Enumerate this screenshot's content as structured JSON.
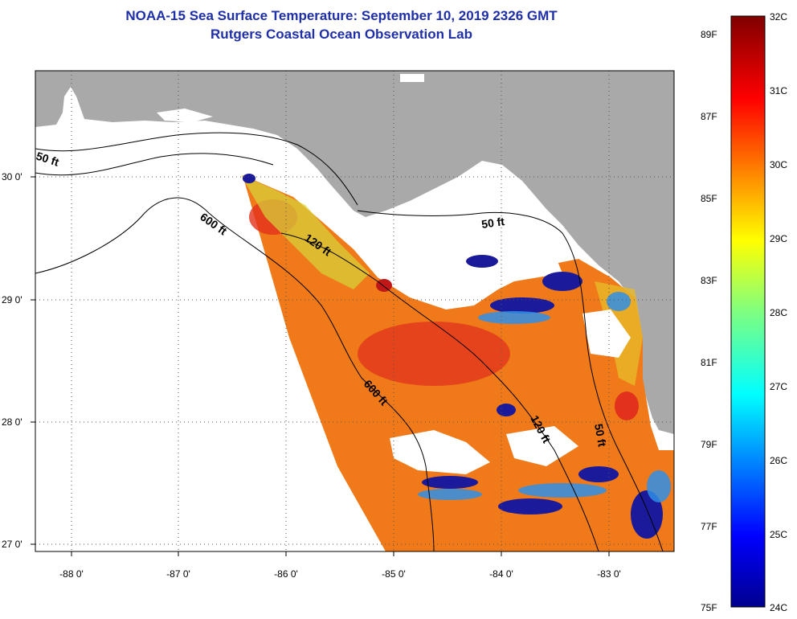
{
  "header": {
    "title": "NOAA-15 Sea Surface Temperature:  September 10, 2019 2326 GMT",
    "subtitle": "Rutgers Coastal Ocean Observation Lab"
  },
  "axes": {
    "lon_labels": [
      "-88 0'",
      "-87 0'",
      "-86 0'",
      "-85 0'",
      "-84 0'",
      "-83 0'"
    ],
    "lat_labels": [
      "30 0'",
      "29 0'",
      "28 0'",
      "27 0'"
    ]
  },
  "contours": {
    "c50_west": "50 ft",
    "c600_north": "600 ft",
    "c120_north": "120 ft",
    "c50_east": "50 ft",
    "c600_south": "600 ft",
    "c120_south": "120 ft",
    "c50_south": "50 ft"
  },
  "colorbar": {
    "celsius": [
      "32C",
      "31C",
      "30C",
      "29C",
      "28C",
      "27C",
      "26C",
      "25C",
      "24C"
    ],
    "fahrenheit": [
      "89F",
      "87F",
      "85F",
      "83F",
      "81F",
      "79F",
      "77F",
      "75F"
    ]
  },
  "colors": {
    "land": "#a9a9a9",
    "no_data": "#ffffff",
    "title": "#1f2fa8",
    "warm": "#f07a1a",
    "hot": "#e2321c",
    "cool": "#2f6fd8",
    "cold": "#1a1a9a"
  }
}
